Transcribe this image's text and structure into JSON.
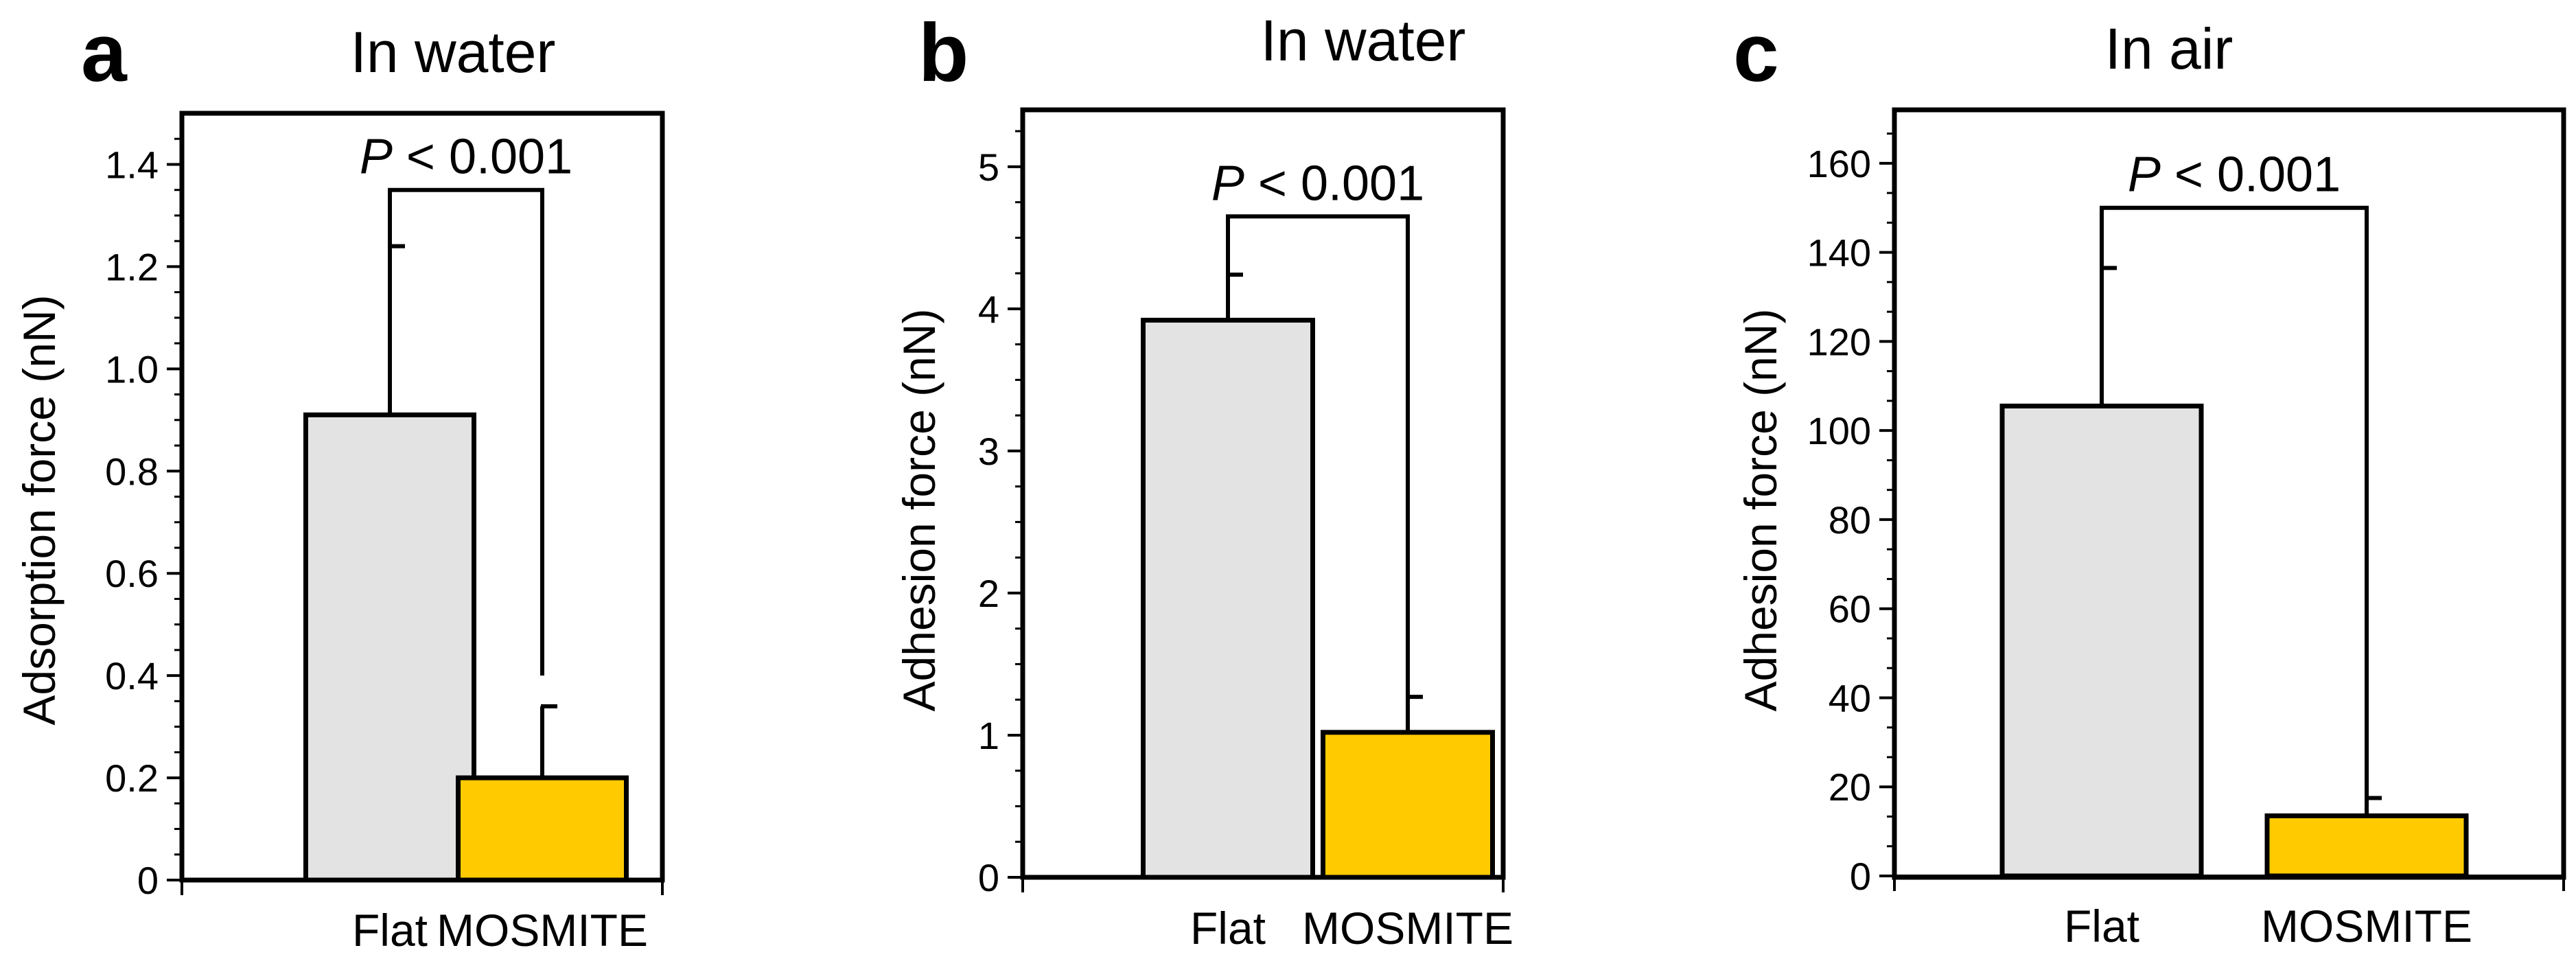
{
  "chart_data": [
    {
      "type": "bar",
      "panel_label": "a",
      "title": "In water",
      "ylabel": "Adsorption force (nN)",
      "categories": [
        "Flat",
        "MOSMITE"
      ],
      "values": [
        0.91,
        0.2
      ],
      "errors": [
        0.33,
        0.14
      ],
      "colors": [
        "#e3e3e3",
        "#ffcb00"
      ],
      "ylim": [
        0,
        1.5
      ],
      "yticks": [
        0,
        0.2,
        0.4,
        0.6,
        0.8,
        1.0,
        1.2,
        1.4
      ],
      "ytick_labels": [
        "0",
        "0.2",
        "0.4",
        "0.6",
        "0.8",
        "1.0",
        "1.2",
        "1.4"
      ],
      "significance": {
        "italic_part": "P",
        "text": " < 0.001",
        "bracket_y": 1.35,
        "left_end_y": 1.24,
        "right_end_y": 0.4
      }
    },
    {
      "type": "bar",
      "panel_label": "b",
      "title": "In water",
      "ylabel": "Adhesion force (nN)",
      "categories": [
        "Flat",
        "MOSMITE"
      ],
      "values": [
        3.92,
        1.02
      ],
      "errors": [
        0.32,
        0.25
      ],
      "colors": [
        "#e3e3e3",
        "#ffcb00"
      ],
      "ylim": [
        0,
        5.4
      ],
      "yticks": [
        0,
        1,
        2,
        3,
        4,
        5
      ],
      "ytick_labels": [
        "0",
        "1",
        "2",
        "3",
        "4",
        "5"
      ],
      "significance": {
        "italic_part": "P",
        "text": " < 0.001",
        "bracket_y": 4.65,
        "left_end_y": 4.24,
        "right_end_y": 1.27
      }
    },
    {
      "type": "bar",
      "panel_label": "c",
      "title": "In air",
      "ylabel": "Adhesion force (nN)",
      "categories": [
        "Flat",
        "MOSMITE"
      ],
      "values": [
        105.5,
        13.5
      ],
      "errors": [
        31.0,
        4.0
      ],
      "colors": [
        "#e3e3e3",
        "#ffcb00"
      ],
      "ylim": [
        0,
        172
      ],
      "yticks": [
        0,
        20,
        40,
        60,
        80,
        100,
        120,
        140,
        160
      ],
      "ytick_labels": [
        "0",
        "20",
        "40",
        "60",
        "80",
        "100",
        "120",
        "140",
        "160"
      ],
      "significance": {
        "italic_part": "P",
        "text": " < 0.001",
        "bracket_y": 150,
        "left_end_y": 136.5,
        "right_end_y": 17.5
      }
    }
  ]
}
